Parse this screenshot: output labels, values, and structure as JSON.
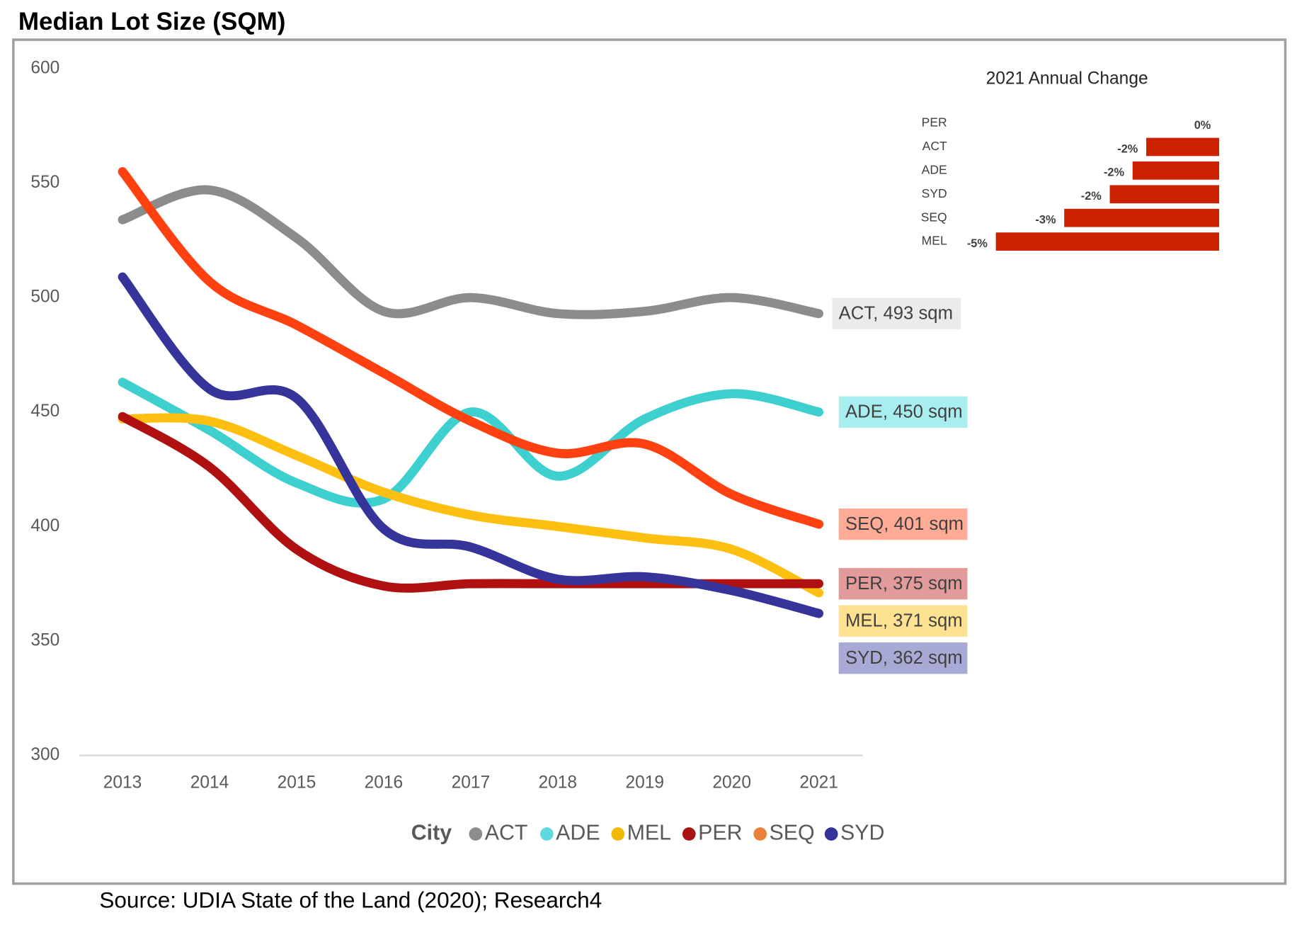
{
  "chart_data": [
    {
      "type": "line",
      "title": "Median Lot Size (SQM)",
      "source": "Source: UDIA State of the Land (2020); Research4",
      "x": [
        2013,
        2014,
        2015,
        2016,
        2017,
        2018,
        2019,
        2020,
        2021
      ],
      "xlim": [
        2013,
        2021
      ],
      "ylim": [
        300,
        600
      ],
      "yticks": [
        300,
        350,
        400,
        450,
        500,
        550,
        600
      ],
      "legend_title": "City",
      "series": [
        {
          "name": "ACT",
          "color": "#8c8c8c",
          "legend_color": "#8c8c8c",
          "label": "ACT, 493 sqm",
          "label_bg": "#ebebeb",
          "values": [
            534,
            547,
            526,
            494,
            500,
            493,
            494,
            500,
            493
          ]
        },
        {
          "name": "ADE",
          "color": "#3ecfcf",
          "legend_color": "#5fd9de",
          "label": "ADE, 450 sqm",
          "label_bg": "#a9eeee",
          "values": [
            463,
            442,
            419,
            412,
            450,
            422,
            447,
            458,
            450
          ]
        },
        {
          "name": "MEL",
          "color": "#fdc010",
          "legend_color": "#f5b800",
          "label": "MEL, 371 sqm",
          "label_bg": "#ffe291",
          "values": [
            447,
            446,
            431,
            415,
            405,
            400,
            395,
            390,
            371
          ]
        },
        {
          "name": "PER",
          "color": "#b01010",
          "legend_color": "#a81414",
          "label": "PER, 375 sqm",
          "label_bg": "#e39a9a",
          "values": [
            448,
            426,
            390,
            374,
            375,
            375,
            375,
            375,
            375
          ]
        },
        {
          "name": "SEQ",
          "color": "#ff4010",
          "legend_color": "#e8823a",
          "label": "SEQ, 401 sqm",
          "label_bg": "#ffab96",
          "values": [
            555,
            507,
            488,
            467,
            446,
            432,
            436,
            414,
            401
          ]
        },
        {
          "name": "SYD",
          "color": "#34349a",
          "legend_color": "#34349a",
          "label": "SYD, 362 sqm",
          "label_bg": "#a9a9d6",
          "values": [
            509,
            460,
            456,
            399,
            391,
            377,
            378,
            372,
            362
          ]
        }
      ]
    },
    {
      "type": "bar",
      "title": "2021 Annual Change",
      "color": "#cc2200",
      "categories": [
        "PER",
        "ACT",
        "ADE",
        "SYD",
        "SEQ",
        "MEL"
      ],
      "values": [
        0,
        -1.6,
        -1.9,
        -2.4,
        -3.4,
        -4.9
      ],
      "value_labels": [
        "0%",
        "-2%",
        "-2%",
        "-2%",
        "-3%",
        "-5%"
      ]
    }
  ]
}
